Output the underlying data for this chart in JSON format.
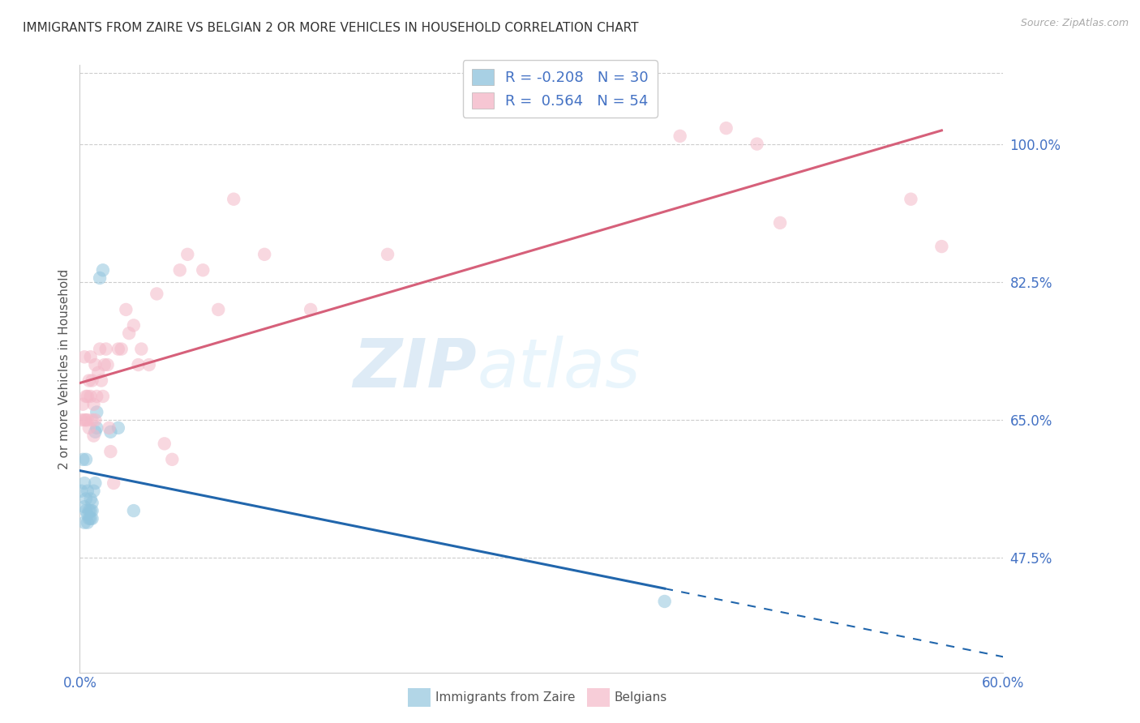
{
  "title": "IMMIGRANTS FROM ZAIRE VS BELGIAN 2 OR MORE VEHICLES IN HOUSEHOLD CORRELATION CHART",
  "source": "Source: ZipAtlas.com",
  "ylabel": "2 or more Vehicles in Household",
  "y_tick_labels": [
    "47.5%",
    "65.0%",
    "82.5%",
    "100.0%"
  ],
  "y_tick_values": [
    0.475,
    0.65,
    0.825,
    1.0
  ],
  "x_min": 0.0,
  "x_max": 0.6,
  "y_min": 0.33,
  "y_max": 1.1,
  "legend_r_blue": "-0.208",
  "legend_n_blue": "30",
  "legend_r_pink": " 0.564",
  "legend_n_pink": "54",
  "blue_color": "#92c5de",
  "pink_color": "#f4b8c8",
  "blue_line_color": "#2166ac",
  "pink_line_color": "#d6607a",
  "watermark_zip": "ZIP",
  "watermark_atlas": "atlas",
  "blue_x": [
    0.001,
    0.002,
    0.003,
    0.003,
    0.003,
    0.004,
    0.004,
    0.004,
    0.005,
    0.005,
    0.005,
    0.006,
    0.006,
    0.007,
    0.007,
    0.007,
    0.008,
    0.008,
    0.008,
    0.009,
    0.01,
    0.01,
    0.011,
    0.011,
    0.013,
    0.015,
    0.02,
    0.025,
    0.035,
    0.38
  ],
  "blue_y": [
    0.56,
    0.6,
    0.52,
    0.54,
    0.57,
    0.535,
    0.55,
    0.6,
    0.52,
    0.53,
    0.56,
    0.525,
    0.535,
    0.525,
    0.535,
    0.55,
    0.525,
    0.535,
    0.545,
    0.56,
    0.57,
    0.635,
    0.64,
    0.66,
    0.83,
    0.84,
    0.635,
    0.64,
    0.535,
    0.42
  ],
  "pink_x": [
    0.001,
    0.002,
    0.003,
    0.003,
    0.004,
    0.004,
    0.005,
    0.005,
    0.006,
    0.006,
    0.007,
    0.007,
    0.008,
    0.008,
    0.009,
    0.009,
    0.01,
    0.01,
    0.011,
    0.012,
    0.013,
    0.014,
    0.015,
    0.016,
    0.017,
    0.018,
    0.019,
    0.02,
    0.022,
    0.025,
    0.027,
    0.03,
    0.032,
    0.035,
    0.038,
    0.04,
    0.045,
    0.05,
    0.055,
    0.06,
    0.065,
    0.07,
    0.08,
    0.09,
    0.1,
    0.12,
    0.15,
    0.2,
    0.39,
    0.42,
    0.44,
    0.455,
    0.54,
    0.56
  ],
  "pink_y": [
    0.65,
    0.67,
    0.65,
    0.73,
    0.65,
    0.68,
    0.65,
    0.68,
    0.64,
    0.7,
    0.68,
    0.73,
    0.65,
    0.7,
    0.63,
    0.67,
    0.65,
    0.72,
    0.68,
    0.71,
    0.74,
    0.7,
    0.68,
    0.72,
    0.74,
    0.72,
    0.64,
    0.61,
    0.57,
    0.74,
    0.74,
    0.79,
    0.76,
    0.77,
    0.72,
    0.74,
    0.72,
    0.81,
    0.62,
    0.6,
    0.84,
    0.86,
    0.84,
    0.79,
    0.93,
    0.86,
    0.79,
    0.86,
    1.01,
    1.02,
    1.0,
    0.9,
    0.93,
    0.87
  ]
}
